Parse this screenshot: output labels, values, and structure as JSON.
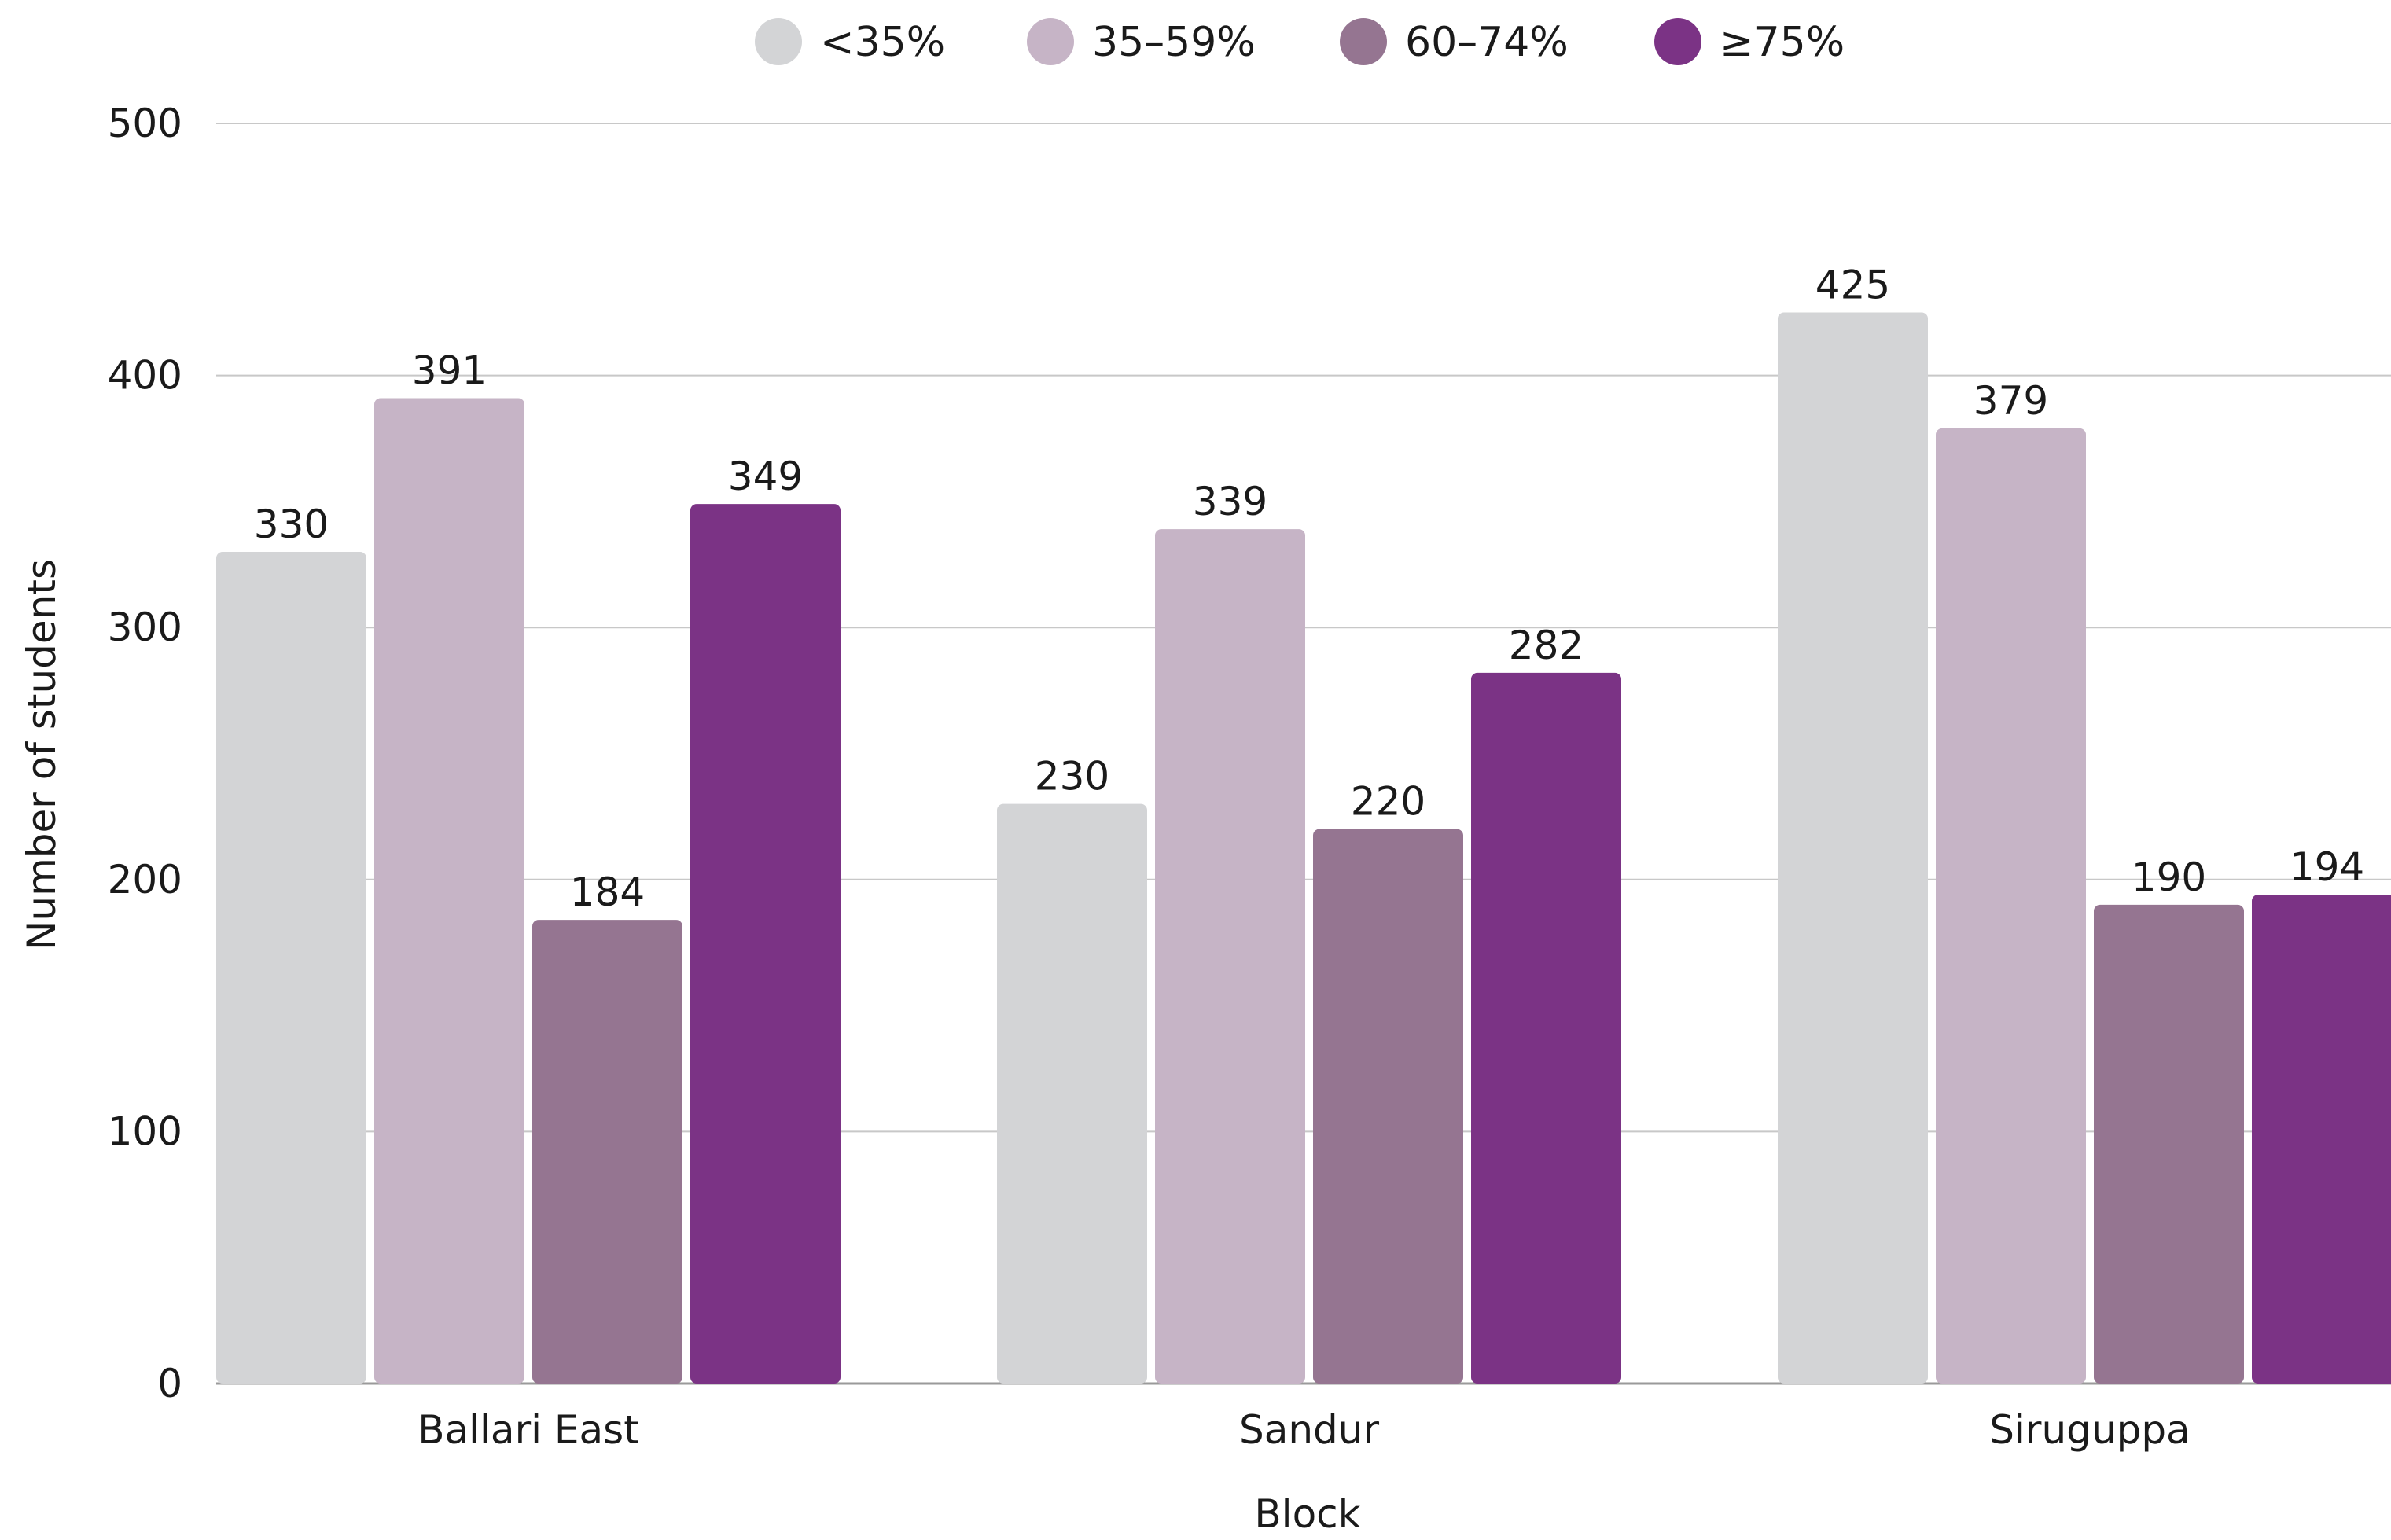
{
  "chart_data": {
    "type": "bar",
    "categories": [
      "Ballari East",
      "Sandur",
      "Siruguppa"
    ],
    "series": [
      {
        "name": "<35%",
        "color": "#d3d4d6",
        "values": [
          330,
          230,
          425
        ]
      },
      {
        "name": "35–59%",
        "color": "#c6b4c6",
        "values": [
          391,
          339,
          379
        ]
      },
      {
        "name": "60–74%",
        "color": "#957591",
        "values": [
          184,
          220,
          190
        ]
      },
      {
        "name": "≥75%",
        "color": "#7b3385",
        "values": [
          349,
          282,
          194
        ]
      }
    ],
    "xlabel": "Block",
    "ylabel": "Number of students",
    "ylim": [
      0,
      500
    ],
    "yticks": [
      0,
      100,
      200,
      300,
      400,
      500
    ],
    "grid": true,
    "legend": "top-center"
  }
}
